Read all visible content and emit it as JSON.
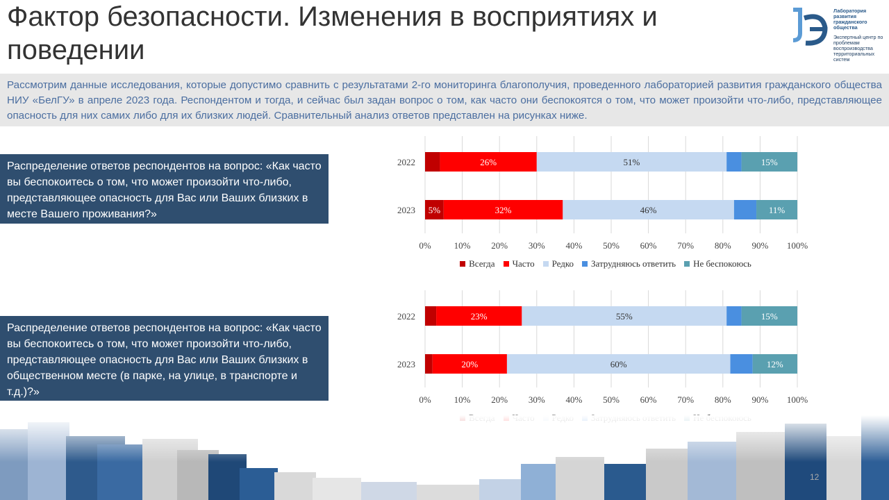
{
  "slide": {
    "title": "Фактор безопасности. Изменения в восприятиях и поведении",
    "intro": "Рассмотрим данные исследования, которые допустимо сравнить с результатами 2-го мониторинга благополучия, проведенного лабораторией развития гражданского общества НИУ «БелГУ» в апреле 2023 года. Респондентом и тогда, и сейчас был задан вопрос о том, как часто они беспокоятся о том, что может произойти что-либо, представляющее опасность для них самих либо для их близких людей. Сравнительный анализ ответов представлен на рисунках ниже.",
    "question1": "Распределение ответов респондентов на вопрос: «Как часто вы беспокоитесь о том, что может произойти что-либо, представляющее опасность для Вас или Ваших близких в месте Вашего проживания?»",
    "question2": "Распределение ответов респондентов на вопрос: «Как часто вы беспокоитесь о том, что может произойти что-либо, представляющее опасность для Вас или Ваших близких в общественном месте (в парке, на улице, в транспорте и т.д.)?»",
    "page_number": "12"
  },
  "logo": {
    "letters": "ЛЭ",
    "line1": "Лаборатория развития гражданского общества",
    "line2": "Экспертный центр по проблемам воспроизводства территориальных систем"
  },
  "chart_data": [
    {
      "type": "bar",
      "orientation": "horizontal",
      "stacked": "100%",
      "categories": [
        "2022",
        "2023"
      ],
      "xlim": [
        0,
        100
      ],
      "xticks": [
        "0%",
        "10%",
        "20%",
        "30%",
        "40%",
        "50%",
        "60%",
        "70%",
        "80%",
        "90%",
        "100%"
      ],
      "legend_position": "bottom",
      "series": [
        {
          "name": "Всегда",
          "color": "#c00000",
          "values": [
            4,
            5
          ],
          "labels": [
            "",
            "5%"
          ]
        },
        {
          "name": "Часто",
          "color": "#ff0000",
          "values": [
            26,
            32
          ],
          "labels": [
            "26%",
            "32%"
          ]
        },
        {
          "name": "Редко",
          "color": "#c5d9f1",
          "values": [
            51,
            46
          ],
          "labels": [
            "51%",
            "46%"
          ]
        },
        {
          "name": "Затрудняюсь ответить",
          "color": "#4a8fe0",
          "values": [
            4,
            6
          ],
          "labels": [
            "",
            ""
          ]
        },
        {
          "name": "Не беспокоюсь",
          "color": "#5aa0b0",
          "values": [
            15,
            11
          ],
          "labels": [
            "15%",
            "11%"
          ]
        }
      ]
    },
    {
      "type": "bar",
      "orientation": "horizontal",
      "stacked": "100%",
      "categories": [
        "2022",
        "2023"
      ],
      "xlim": [
        0,
        100
      ],
      "xticks": [
        "0%",
        "10%",
        "20%",
        "30%",
        "40%",
        "50%",
        "60%",
        "70%",
        "80%",
        "90%",
        "100%"
      ],
      "legend_position": "bottom",
      "series": [
        {
          "name": "Всегда",
          "color": "#c00000",
          "values": [
            3,
            2
          ],
          "labels": [
            "",
            ""
          ]
        },
        {
          "name": "Часто",
          "color": "#ff0000",
          "values": [
            23,
            20
          ],
          "labels": [
            "23%",
            "20%"
          ]
        },
        {
          "name": "Редко",
          "color": "#c5d9f1",
          "values": [
            55,
            60
          ],
          "labels": [
            "55%",
            "60%"
          ]
        },
        {
          "name": "Затрудняюсь ответить",
          "color": "#4a8fe0",
          "values": [
            4,
            6
          ],
          "labels": [
            "",
            ""
          ]
        },
        {
          "name": "Не беспокоюсь",
          "color": "#5aa0b0",
          "values": [
            15,
            12
          ],
          "labels": [
            "15%",
            "12%"
          ]
        }
      ]
    }
  ]
}
